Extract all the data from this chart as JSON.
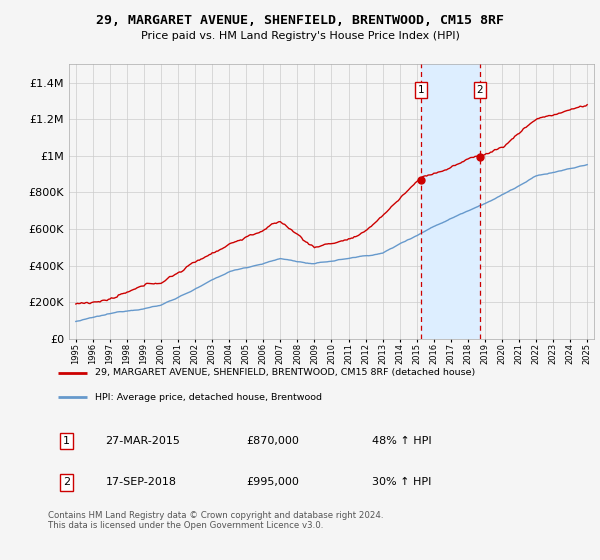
{
  "title": "29, MARGARET AVENUE, SHENFIELD, BRENTWOOD, CM15 8RF",
  "subtitle": "Price paid vs. HM Land Registry's House Price Index (HPI)",
  "red_label": "29, MARGARET AVENUE, SHENFIELD, BRENTWOOD, CM15 8RF (detached house)",
  "blue_label": "HPI: Average price, detached house, Brentwood",
  "sale1_date": "27-MAR-2015",
  "sale1_price": 870000,
  "sale1_pct": "48% ↑ HPI",
  "sale2_date": "17-SEP-2018",
  "sale2_price": 995000,
  "sale2_pct": "30% ↑ HPI",
  "footnote": "Contains HM Land Registry data © Crown copyright and database right 2024.\nThis data is licensed under the Open Government Licence v3.0.",
  "ylim": [
    0,
    1500000
  ],
  "sale1_x": 2015.23,
  "sale2_x": 2018.71,
  "red_color": "#cc0000",
  "blue_color": "#6699cc",
  "shade_color": "#ddeeff",
  "vline_color": "#cc0000",
  "background_color": "#f5f5f5",
  "grid_color": "#cccccc",
  "yticks": [
    0,
    200000,
    400000,
    600000,
    800000,
    1000000,
    1200000,
    1400000
  ],
  "ytick_labels": [
    "£0",
    "£200K",
    "£400K",
    "£600K",
    "£800K",
    "£1M",
    "£1.2M",
    "£1.4M"
  ],
  "xstart": 1995,
  "xend": 2025
}
